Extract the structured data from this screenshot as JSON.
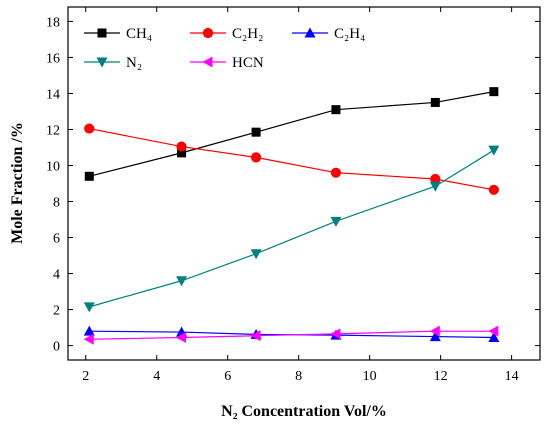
{
  "chart_data": {
    "type": "line",
    "xlabel": "N₂ Concentration Vol/%",
    "ylabel": "Mole Fraction /%",
    "xlim": [
      1.5,
      14.8
    ],
    "ylim": [
      -0.8,
      18.8
    ],
    "xticks": [
      2,
      4,
      6,
      8,
      10,
      12,
      14
    ],
    "yticks": [
      0,
      2,
      4,
      6,
      8,
      10,
      12,
      14,
      16,
      18
    ],
    "grid": false,
    "legend_position": "top-left-inside",
    "x": [
      2.1,
      4.7,
      6.8,
      9.05,
      11.85,
      13.5
    ],
    "series": [
      {
        "name": "CH₄",
        "color": "#000000",
        "marker": "square",
        "values": [
          9.4,
          10.7,
          11.85,
          13.1,
          13.5,
          14.1
        ]
      },
      {
        "name": "C₂H₂",
        "color": "#ff0000",
        "marker": "circle",
        "values": [
          12.05,
          11.05,
          10.45,
          9.6,
          9.25,
          8.65
        ]
      },
      {
        "name": "C₂H₄",
        "color": "#0000ff",
        "marker": "triangle-up",
        "values": [
          0.8,
          0.75,
          0.62,
          0.58,
          0.5,
          0.45
        ]
      },
      {
        "name": "N₂",
        "color": "#008080",
        "marker": "triangle-down",
        "values": [
          2.15,
          3.6,
          5.1,
          6.9,
          8.85,
          10.85
        ]
      },
      {
        "name": "HCN",
        "color": "#ff00ff",
        "marker": "triangle-left",
        "values": [
          0.35,
          0.45,
          0.55,
          0.65,
          0.8,
          0.8
        ]
      }
    ]
  }
}
